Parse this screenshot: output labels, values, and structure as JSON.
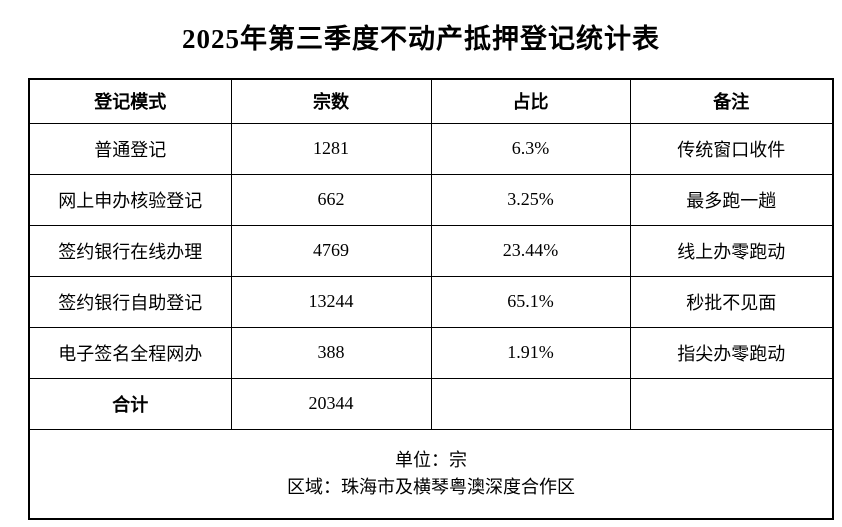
{
  "title": "2025年第三季度不动产抵押登记统计表",
  "table": {
    "headers": [
      "登记模式",
      "宗数",
      "占比",
      "备注"
    ],
    "rows": [
      {
        "mode": "普通登记",
        "count": "1281",
        "ratio": "6.3%",
        "note": "传统窗口收件"
      },
      {
        "mode": "网上申办核验登记",
        "count": "662",
        "ratio": "3.25%",
        "note": "最多跑一趟"
      },
      {
        "mode": "签约银行在线办理",
        "count": "4769",
        "ratio": "23.44%",
        "note": "线上办零跑动"
      },
      {
        "mode": "签约银行自助登记",
        "count": "13244",
        "ratio": "65.1%",
        "note": "秒批不见面"
      },
      {
        "mode": "电子签名全程网办",
        "count": "388",
        "ratio": "1.91%",
        "note": "指尖办零跑动"
      }
    ],
    "total": {
      "label": "合计",
      "count": "20344",
      "ratio": "",
      "note": ""
    },
    "footer": {
      "unit_line": "单位：宗",
      "region_line": "区域：珠海市及横琴粤澳深度合作区"
    }
  }
}
